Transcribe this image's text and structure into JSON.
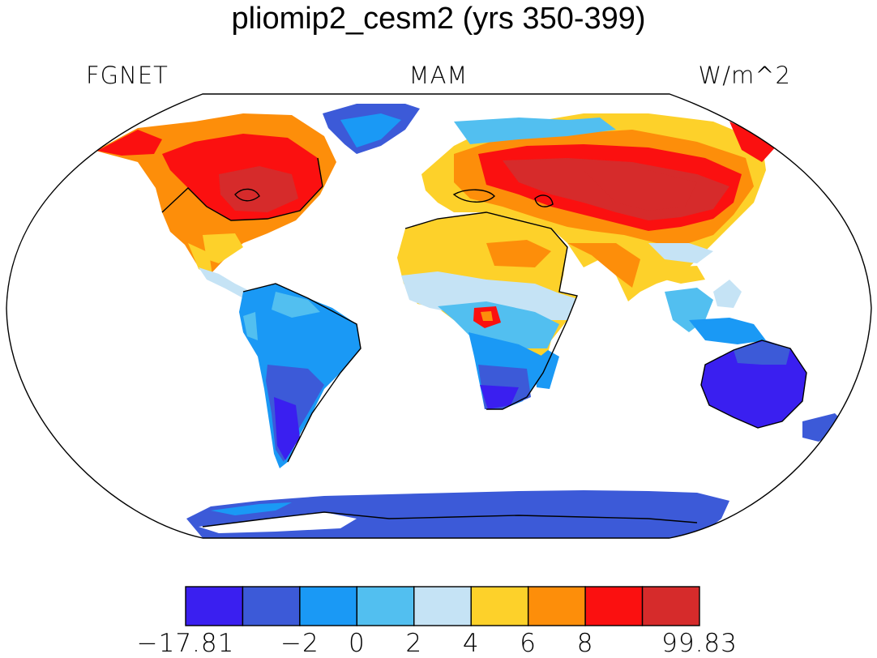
{
  "title": "pliomip2_cesm2 (yrs 350-399)",
  "left_label": "FGNET",
  "center_label": "MAM",
  "right_label": "W/m^2",
  "colorbar": {
    "colors": [
      "#3a1ff0",
      "#3c5ad8",
      "#1a99f5",
      "#52bff0",
      "#c5e3f5",
      "#fdd12a",
      "#fd8e0a",
      "#fb1010",
      "#d62b2b"
    ],
    "labels": [
      "−17.81",
      "−2",
      "0",
      "2",
      "4",
      "6",
      "8",
      "99.83"
    ]
  },
  "regions": [
    {
      "name": "north-america",
      "color": "#fb1010"
    },
    {
      "name": "south-america",
      "color": "#1a99f5"
    },
    {
      "name": "africa",
      "color": "#fdd12a"
    },
    {
      "name": "eurasia",
      "color": "#fb1010"
    },
    {
      "name": "australia",
      "color": "#3a1ff0"
    },
    {
      "name": "greenland",
      "color": "#3c5ad8"
    },
    {
      "name": "antarctica",
      "color": "#3c5ad8"
    }
  ]
}
